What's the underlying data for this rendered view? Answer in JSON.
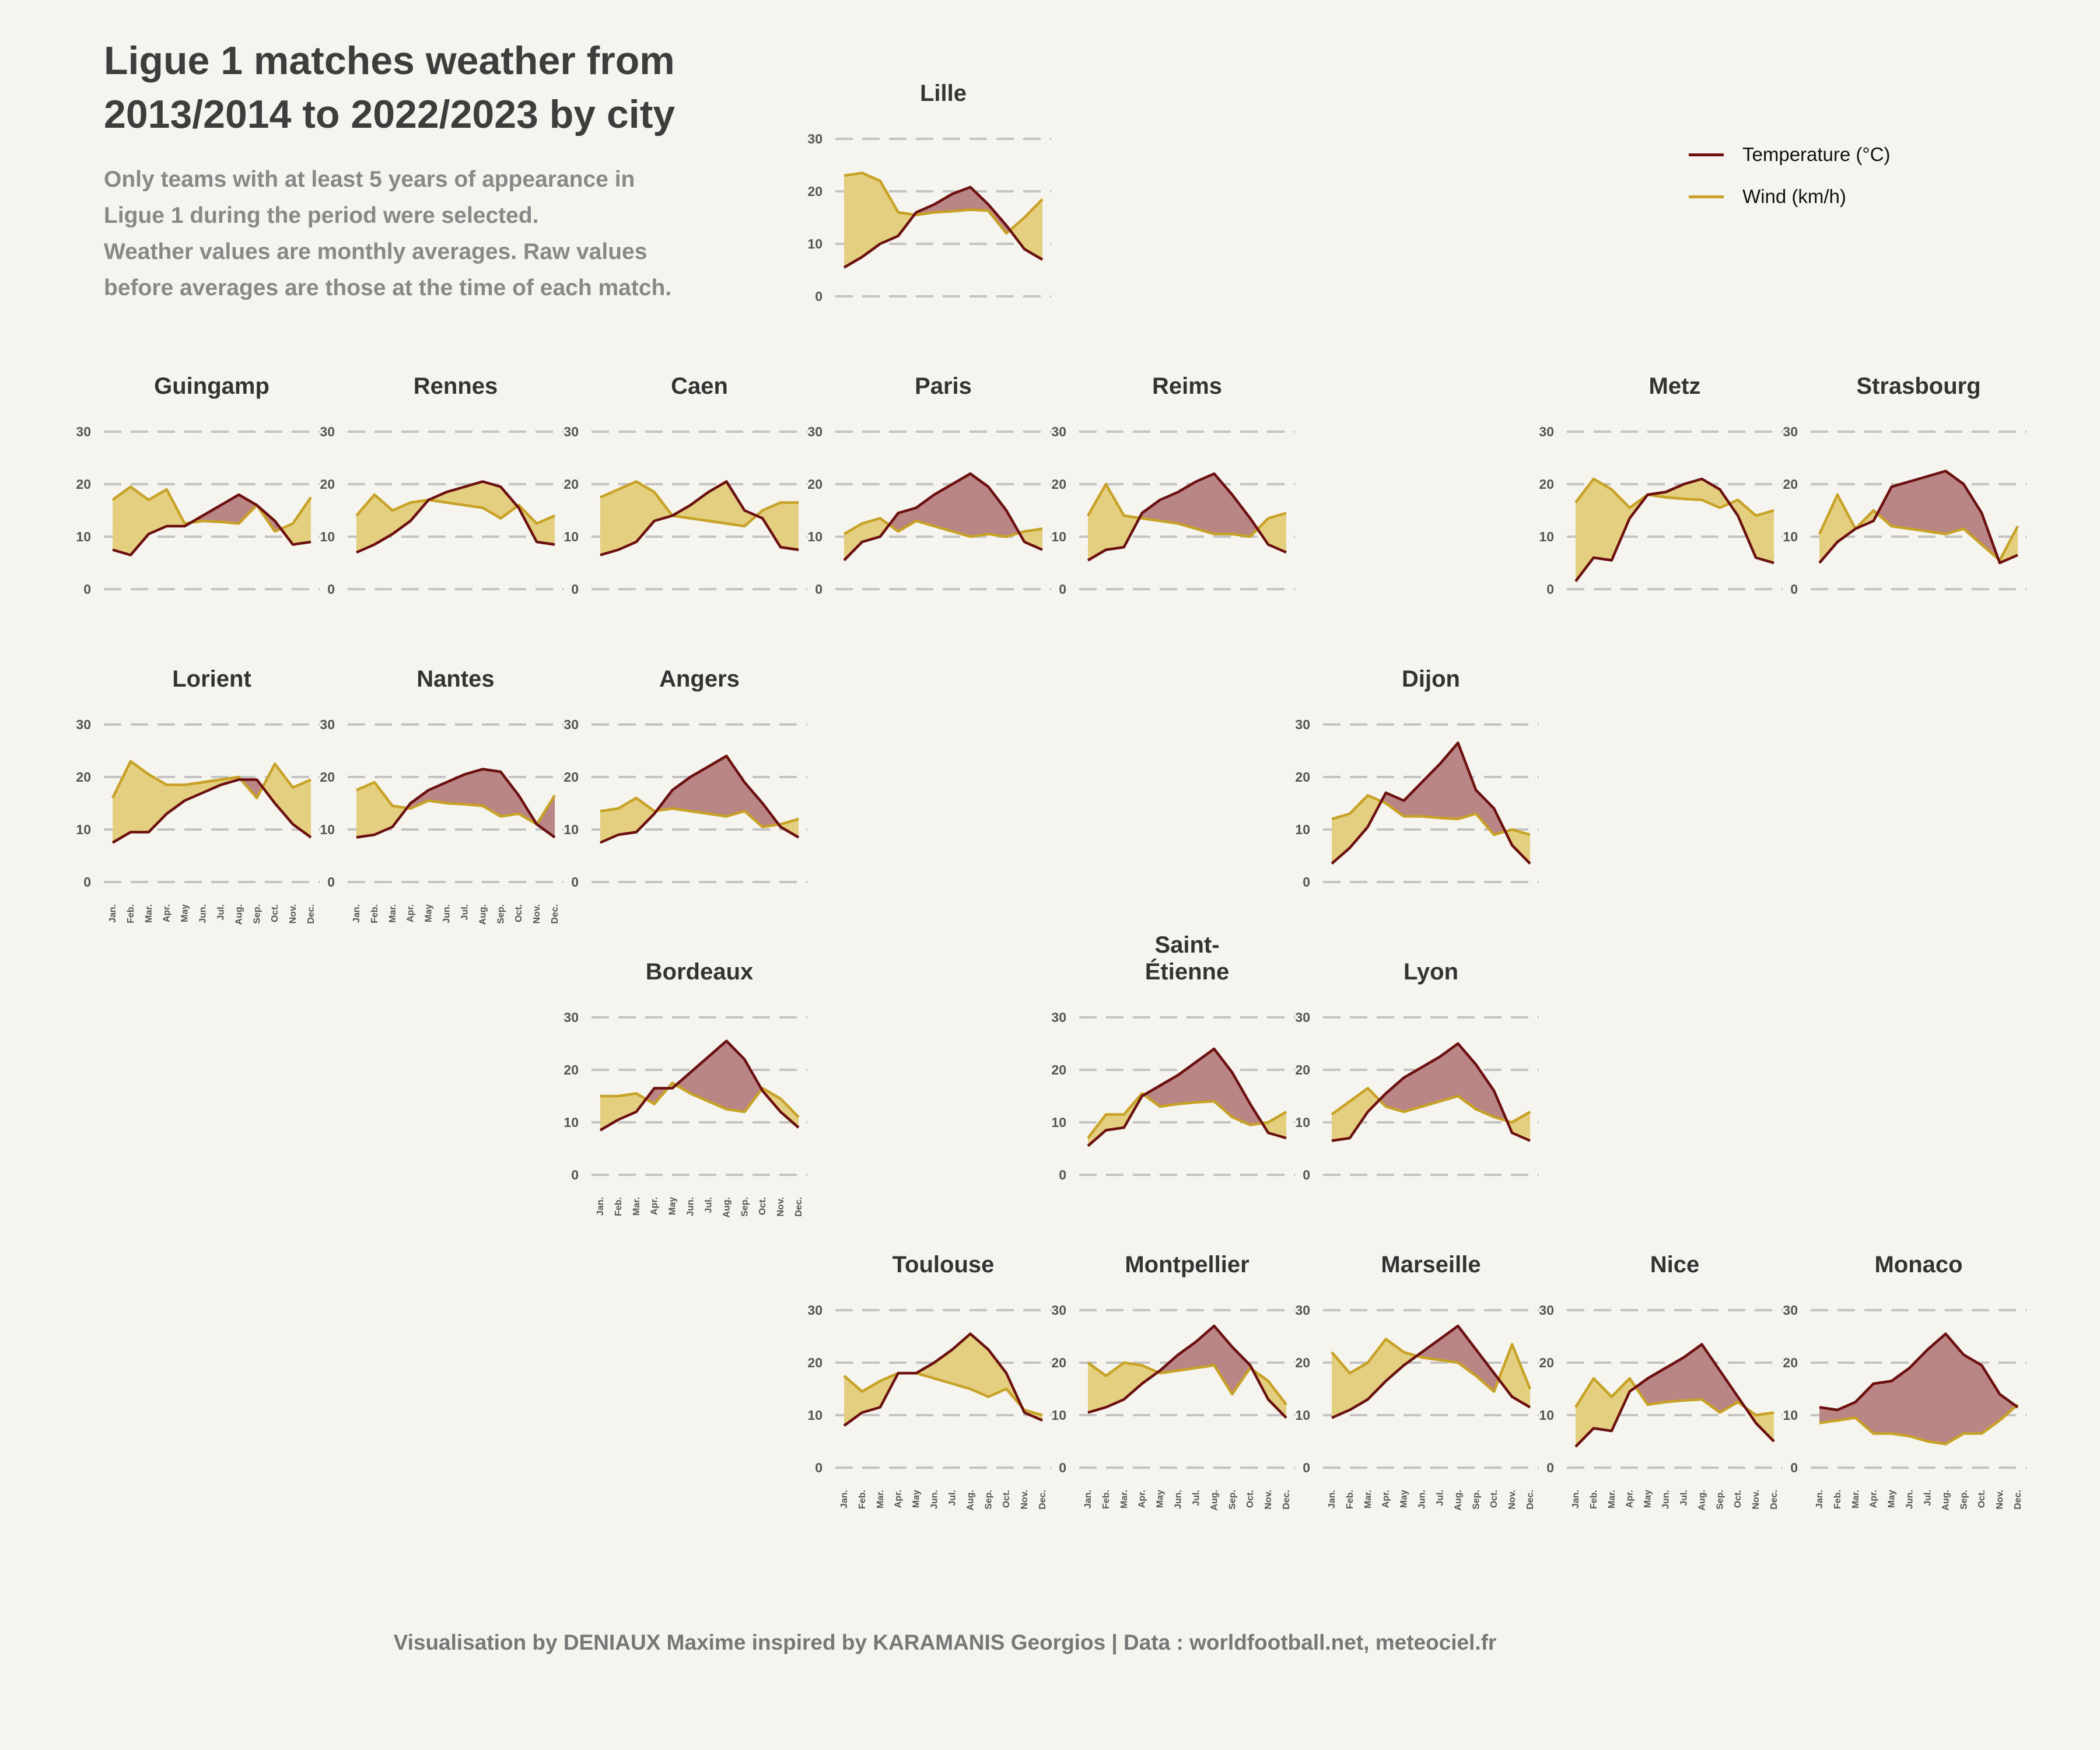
{
  "title": "Ligue 1 matches weather from 2013/2014 to 2022/2023 by city",
  "subtitle_lines": [
    "Only teams with at least 5 years of appearance in",
    "Ligue 1 during the period were selected.",
    "Weather values are monthly averages. Raw values",
    "before averages are those at the time of each match."
  ],
  "caption": "Visualisation by DENIAUX Maxime inspired by KARAMANIS Georgios | Data : worldfootball.net, meteociel.fr",
  "legend": [
    {
      "label": "Temperature (°C)",
      "color": "#6b0f0f"
    },
    {
      "label": "Wind (km/h)",
      "color": "#c8a227"
    }
  ],
  "colors": {
    "temperature": "#6b0f0f",
    "wind": "#c8a227",
    "wind_fill": "#e3cf7f",
    "temp_fill": "#b98585",
    "grid": "#c3c3c3",
    "background": "#f5f4ef"
  },
  "chart_data": {
    "type": "area",
    "months": [
      "Jan.",
      "Feb.",
      "Mar.",
      "Apr.",
      "May",
      "Jun.",
      "Jul.",
      "Aug.",
      "Sep.",
      "Oct.",
      "Nov.",
      "Dec."
    ],
    "yticks": [
      0,
      10,
      20,
      30
    ],
    "ylim": [
      0,
      30
    ],
    "grid": "horizontal dashed",
    "legend_position": "top-right",
    "series_names": [
      "Temperature (°C)",
      "Wind (km/h)"
    ],
    "cities": [
      {
        "name": "Lille",
        "row": 0,
        "col": 3,
        "temperature": [
          5.5,
          7.5,
          10,
          11.5,
          16,
          17.5,
          19.5,
          20.8,
          17.5,
          13.5,
          9,
          7
        ],
        "wind": [
          23,
          23.5,
          22,
          16,
          15.5,
          16,
          16.2,
          16.5,
          16.3,
          12,
          15,
          18.5
        ]
      },
      {
        "name": "Guingamp",
        "row": 1,
        "col": 0,
        "temperature": [
          7.5,
          6.5,
          10.5,
          12,
          12,
          14,
          16,
          18,
          16,
          13,
          8.5,
          9
        ],
        "wind": [
          17,
          19.5,
          17,
          19,
          12.5,
          13,
          12.8,
          12.5,
          16,
          11,
          12.5,
          17.5
        ]
      },
      {
        "name": "Rennes",
        "row": 1,
        "col": 1,
        "temperature": [
          7,
          8.5,
          10.5,
          13,
          17,
          18.5,
          19.5,
          20.5,
          19.5,
          15.5,
          9,
          8.5
        ],
        "wind": [
          14,
          18,
          15,
          16.5,
          17,
          16.5,
          16,
          15.5,
          13.5,
          16,
          12.5,
          14
        ]
      },
      {
        "name": "Caen",
        "row": 1,
        "col": 2,
        "temperature": [
          6.5,
          7.5,
          9,
          13,
          14,
          16,
          18.5,
          20.5,
          15,
          13.5,
          8,
          7.5
        ],
        "wind": [
          17.5,
          19,
          20.5,
          18.5,
          14,
          13.5,
          13,
          12.5,
          12,
          15,
          16.5,
          16.5
        ]
      },
      {
        "name": "Paris",
        "row": 1,
        "col": 3,
        "temperature": [
          5.5,
          9,
          10,
          14.5,
          15.5,
          18,
          20,
          22,
          19.5,
          15,
          9,
          7.5
        ],
        "wind": [
          10.5,
          12.5,
          13.5,
          11,
          13,
          12,
          11,
          10,
          10.5,
          10,
          11,
          11.5
        ]
      },
      {
        "name": "Reims",
        "row": 1,
        "col": 4,
        "temperature": [
          5.5,
          7.5,
          8,
          14.5,
          17,
          18.5,
          20.5,
          22,
          18,
          13.5,
          8.5,
          7
        ],
        "wind": [
          14,
          20,
          14,
          13.5,
          13,
          12.5,
          11.5,
          10.5,
          10.5,
          10,
          13.5,
          14.5
        ]
      },
      {
        "name": "Metz",
        "row": 1,
        "col": 6,
        "temperature": [
          1.5,
          6,
          5.5,
          13.5,
          18,
          18.5,
          20,
          21,
          19,
          14,
          6,
          5
        ],
        "wind": [
          16.5,
          21,
          19,
          15.5,
          18,
          17.5,
          17.2,
          17,
          15.5,
          17,
          14,
          15
        ]
      },
      {
        "name": "Strasbourg",
        "row": 1,
        "col": 7,
        "temperature": [
          5,
          9,
          11.5,
          13,
          19.5,
          20.5,
          21.5,
          22.5,
          20,
          14.5,
          5,
          6.5
        ],
        "wind": [
          10.5,
          18,
          11.5,
          15,
          12,
          11.5,
          11,
          10.5,
          11.5,
          8.5,
          5.5,
          12
        ]
      },
      {
        "name": "Lorient",
        "row": 2,
        "col": 0,
        "temperature": [
          7.5,
          9.5,
          9.5,
          13,
          15.5,
          17,
          18.5,
          19.5,
          19.5,
          15,
          11,
          8.5
        ],
        "wind": [
          16,
          23,
          20.5,
          18.5,
          18.5,
          19,
          19.5,
          20,
          16,
          22.5,
          18,
          19.5
        ]
      },
      {
        "name": "Nantes",
        "row": 2,
        "col": 1,
        "temperature": [
          8.5,
          9,
          10.5,
          15,
          17.5,
          19,
          20.5,
          21.5,
          21,
          16.5,
          11,
          8.5
        ],
        "wind": [
          17.5,
          19,
          14.5,
          14,
          15.5,
          15,
          14.8,
          14.5,
          12.5,
          13,
          11,
          16.5
        ]
      },
      {
        "name": "Angers",
        "row": 2,
        "col": 2,
        "temperature": [
          7.5,
          9,
          9.5,
          13,
          17.5,
          20,
          22,
          24,
          19,
          15,
          10.5,
          8.5
        ],
        "wind": [
          13.5,
          14,
          16,
          13.5,
          14,
          13.5,
          13,
          12.5,
          13.5,
          10.5,
          11,
          12
        ]
      },
      {
        "name": "Dijon",
        "row": 2,
        "col": 5,
        "temperature": [
          3.5,
          6.5,
          10.5,
          17,
          15.5,
          19,
          22.5,
          26.5,
          17.5,
          14,
          7,
          3.5
        ],
        "wind": [
          12,
          13,
          16.5,
          15,
          12.5,
          12.5,
          12.2,
          12,
          13,
          9,
          10,
          9
        ]
      },
      {
        "name": "Bordeaux",
        "row": 3,
        "col": 2,
        "temperature": [
          8.5,
          10.5,
          12,
          16.5,
          16.5,
          19.5,
          22.5,
          25.5,
          22,
          16,
          12,
          9
        ],
        "wind": [
          15,
          15,
          15.5,
          13.5,
          17.5,
          15.5,
          14,
          12.5,
          12,
          16.5,
          14.5,
          11
        ]
      },
      {
        "name": "Saint-\nÉtienne",
        "row": 3,
        "col": 4,
        "temperature": [
          5.5,
          8.5,
          9,
          15,
          17,
          19,
          21.5,
          24,
          19.5,
          13.5,
          8,
          7
        ],
        "wind": [
          7,
          11.5,
          11.5,
          15.5,
          13,
          13.5,
          13.8,
          14,
          11,
          9.5,
          10,
          12
        ]
      },
      {
        "name": "Lyon",
        "row": 3,
        "col": 5,
        "temperature": [
          6.5,
          7,
          12,
          15.5,
          18.5,
          20.5,
          22.5,
          25,
          21,
          16,
          8,
          6.5
        ],
        "wind": [
          11.5,
          14,
          16.5,
          13,
          12,
          13,
          14,
          15,
          12.5,
          11,
          10,
          12
        ]
      },
      {
        "name": "Toulouse",
        "row": 4,
        "col": 3,
        "temperature": [
          8,
          10.5,
          11.5,
          18,
          18,
          20,
          22.5,
          25.5,
          22.5,
          18,
          10.5,
          9
        ],
        "wind": [
          17.5,
          14.5,
          16.5,
          18,
          18,
          17,
          16,
          15,
          13.5,
          15,
          11,
          10
        ]
      },
      {
        "name": "Montpellier",
        "row": 4,
        "col": 4,
        "temperature": [
          10.5,
          11.5,
          13,
          16,
          18.5,
          21.5,
          24,
          27,
          23,
          19.5,
          13,
          9.5
        ],
        "wind": [
          20,
          17.5,
          20,
          19.5,
          18,
          18.5,
          19,
          19.5,
          14,
          19,
          16.5,
          12
        ]
      },
      {
        "name": "Marseille",
        "row": 4,
        "col": 5,
        "temperature": [
          9.5,
          11,
          13,
          16.5,
          19.5,
          22,
          24.5,
          27,
          22.5,
          18,
          13.5,
          11.5
        ],
        "wind": [
          22,
          18,
          20,
          24.5,
          22,
          21,
          20.5,
          20,
          17.5,
          14.5,
          23.5,
          15
        ]
      },
      {
        "name": "Nice",
        "row": 4,
        "col": 6,
        "temperature": [
          4,
          7.5,
          7,
          14.5,
          17,
          19,
          21,
          23.5,
          18.5,
          13.5,
          8.5,
          5
        ],
        "wind": [
          11.5,
          17,
          13.5,
          17,
          12,
          12.5,
          12.8,
          13,
          10.5,
          12.5,
          10,
          10.5
        ]
      },
      {
        "name": "Monaco",
        "row": 4,
        "col": 7,
        "temperature": [
          11.5,
          11,
          12.5,
          16,
          16.5,
          19,
          22.5,
          25.5,
          21.5,
          19.5,
          14,
          11.5
        ],
        "wind": [
          8.5,
          9,
          9.5,
          6.5,
          6.5,
          6,
          5,
          4.5,
          6.5,
          6.5,
          9,
          12
        ]
      }
    ]
  }
}
